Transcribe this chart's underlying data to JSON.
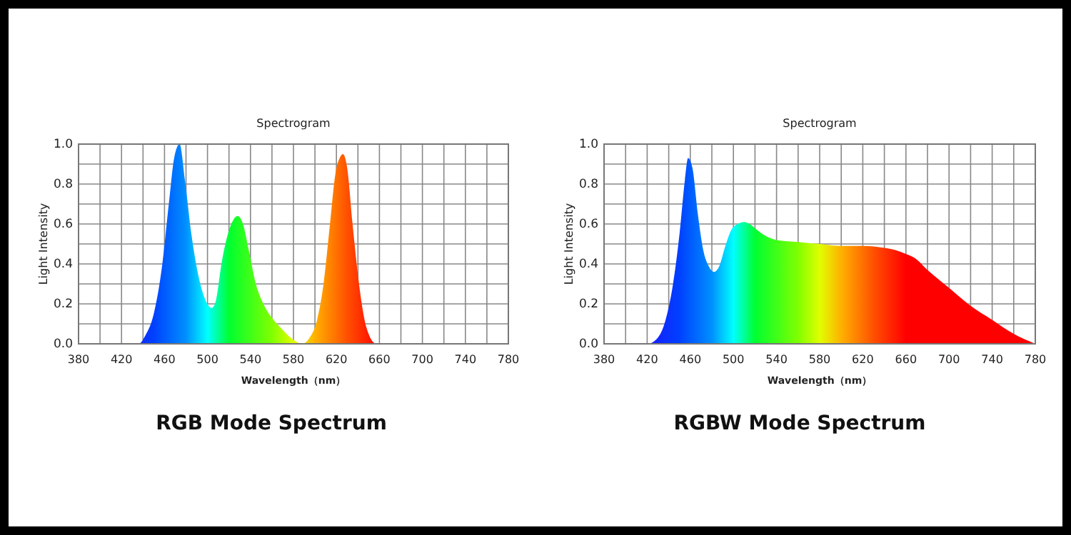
{
  "chart_data": [
    {
      "type": "area",
      "title": "Spectrogram",
      "xlabel": "Wavelength（nm）",
      "ylabel": "Light Intensity",
      "annotations": [
        "RGB Mode Spectrum"
      ],
      "grid": true,
      "xlim": [
        380,
        780
      ],
      "ylim": [
        0,
        1
      ],
      "xticks": [
        380,
        {
          "value": 400,
          "label": null
        },
        420,
        {
          "value": 440,
          "label": null
        },
        460,
        {
          "value": 480,
          "label": null
        },
        500,
        {
          "value": 520,
          "label": null
        },
        540,
        {
          "value": 560,
          "label": null
        },
        580,
        {
          "value": 600,
          "label": null
        },
        620,
        {
          "value": 640,
          "label": null
        },
        660,
        {
          "value": 680,
          "label": null
        },
        700,
        {
          "value": 720,
          "label": null
        },
        740,
        {
          "value": 760,
          "label": null
        },
        780
      ],
      "yticks": [
        {
          "value": 0,
          "label": "0.0"
        },
        {
          "value": 0.1,
          "label": null
        },
        0.2,
        {
          "value": 0.3,
          "label": null
        },
        0.4,
        {
          "value": 0.5,
          "label": null
        },
        0.6,
        {
          "value": 0.7,
          "label": null
        },
        0.8,
        {
          "value": 0.9,
          "label": null
        },
        {
          "value": 1,
          "label": "1.0"
        }
      ],
      "x": [
        380,
        430,
        436,
        442,
        450,
        458,
        464,
        469,
        474,
        479,
        485,
        492,
        498,
        504,
        508,
        513,
        519,
        524,
        528,
        533,
        538,
        545,
        552,
        560,
        570,
        580,
        588,
        595,
        602,
        608,
        614,
        619,
        623,
        626,
        630,
        635,
        641,
        648,
        657,
        780
      ],
      "values": [
        0,
        0,
        0,
        0.04,
        0.15,
        0.4,
        0.7,
        0.93,
        1.0,
        0.82,
        0.55,
        0.33,
        0.22,
        0.18,
        0.22,
        0.4,
        0.55,
        0.62,
        0.64,
        0.6,
        0.48,
        0.3,
        0.2,
        0.13,
        0.07,
        0.02,
        0,
        0.03,
        0.12,
        0.3,
        0.6,
        0.85,
        0.93,
        0.95,
        0.88,
        0.6,
        0.3,
        0.08,
        0,
        0
      ]
    },
    {
      "type": "area",
      "title": "Spectrogram",
      "xlabel": "Wavelength（nm）",
      "ylabel": "Light Intensity",
      "annotations": [
        "RGBW Mode Spectrum"
      ],
      "grid": true,
      "xlim": [
        380,
        780
      ],
      "ylim": [
        0,
        1
      ],
      "xticks": [
        380,
        {
          "value": 400,
          "label": null
        },
        420,
        {
          "value": 440,
          "label": null
        },
        460,
        {
          "value": 480,
          "label": null
        },
        500,
        {
          "value": 520,
          "label": null
        },
        540,
        {
          "value": 560,
          "label": null
        },
        580,
        {
          "value": 600,
          "label": null
        },
        620,
        {
          "value": 640,
          "label": null
        },
        660,
        {
          "value": 680,
          "label": null
        },
        700,
        {
          "value": 720,
          "label": null
        },
        740,
        {
          "value": 760,
          "label": null
        },
        780
      ],
      "yticks": [
        {
          "value": 0,
          "label": "0.0"
        },
        {
          "value": 0.1,
          "label": null
        },
        0.2,
        {
          "value": 0.3,
          "label": null
        },
        0.4,
        {
          "value": 0.5,
          "label": null
        },
        0.6,
        {
          "value": 0.7,
          "label": null
        },
        0.8,
        {
          "value": 0.9,
          "label": null
        },
        {
          "value": 1,
          "label": "1.0"
        }
      ],
      "x": [
        380,
        420,
        428,
        436,
        444,
        450,
        455,
        458,
        462,
        467,
        472,
        477,
        482,
        487,
        492,
        498,
        504,
        510,
        515,
        522,
        530,
        540,
        560,
        580,
        600,
        620,
        640,
        650,
        660,
        668,
        680,
        700,
        720,
        740,
        760,
        780
      ],
      "values": [
        0,
        0,
        0.02,
        0.1,
        0.3,
        0.55,
        0.82,
        0.93,
        0.88,
        0.65,
        0.47,
        0.39,
        0.36,
        0.39,
        0.48,
        0.57,
        0.6,
        0.61,
        0.6,
        0.57,
        0.54,
        0.52,
        0.51,
        0.5,
        0.49,
        0.49,
        0.48,
        0.47,
        0.45,
        0.43,
        0.37,
        0.28,
        0.19,
        0.12,
        0.05,
        0
      ]
    }
  ]
}
